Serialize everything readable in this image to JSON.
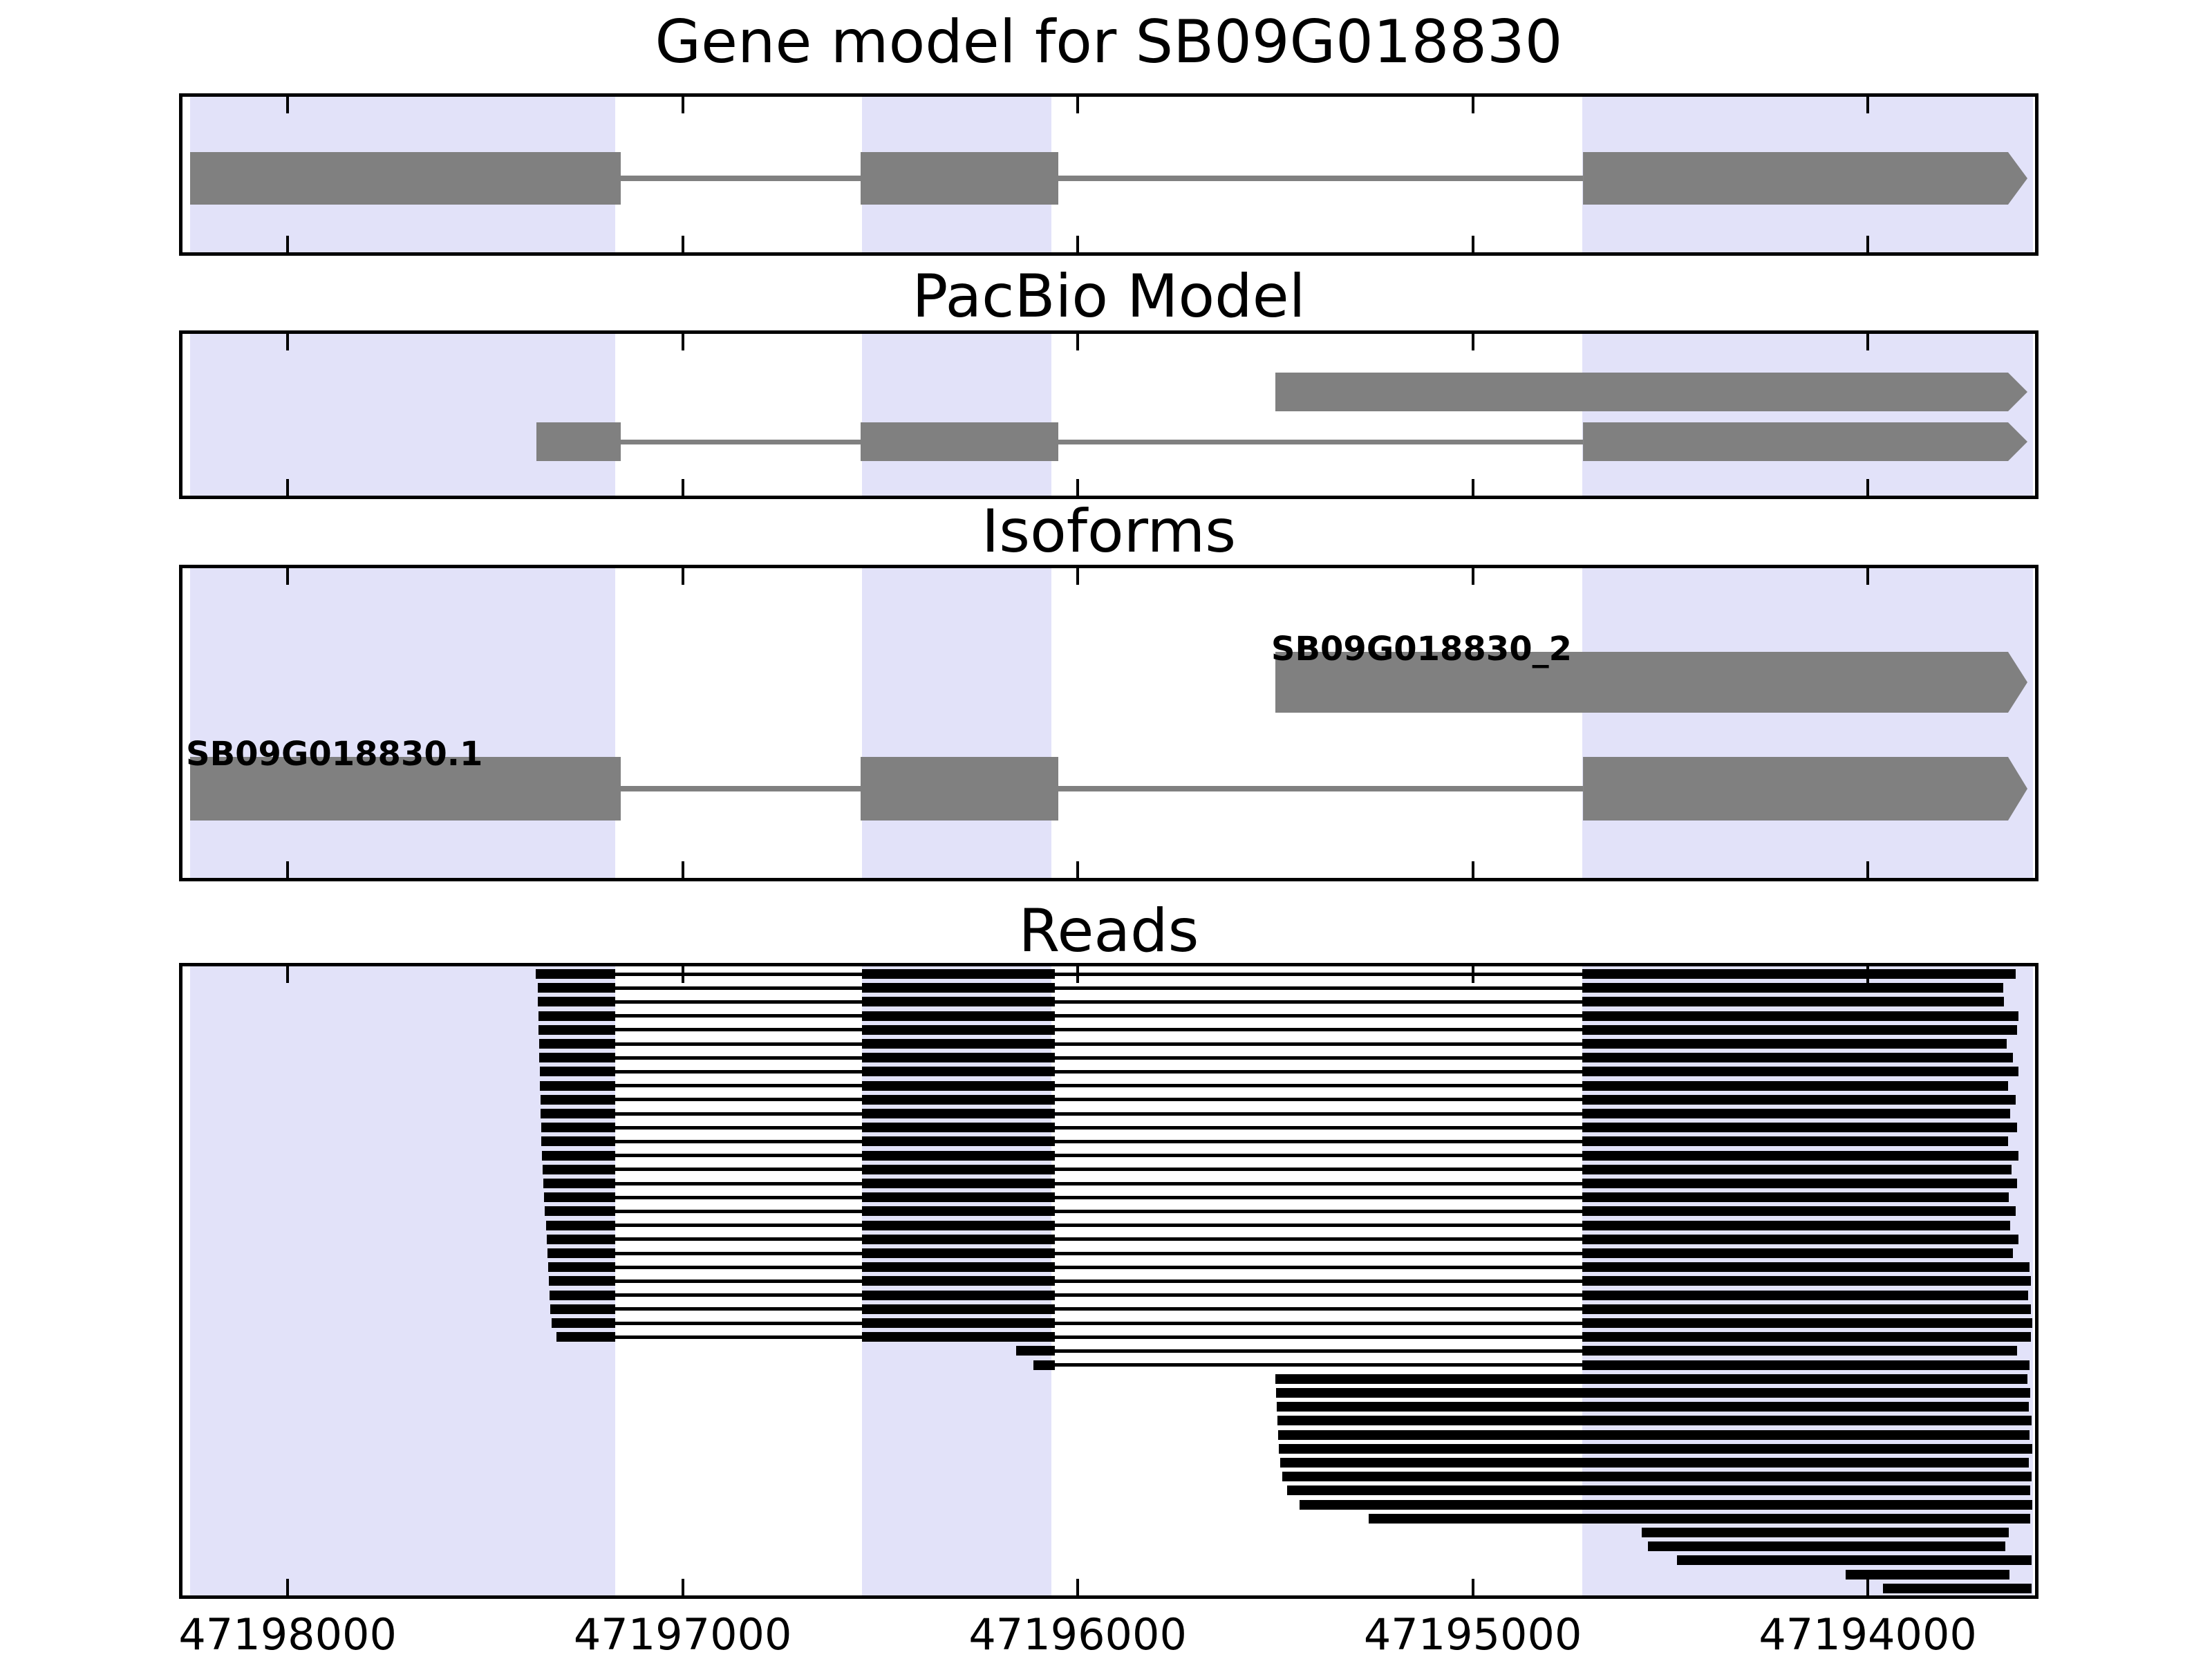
{
  "figure_title": "Gene model for SB09G018830",
  "colors": {
    "highlight_band": "#e2e2f9",
    "feature_gray": "#808080",
    "read_black": "#000000",
    "border_black": "#000000",
    "background": "#ffffff"
  },
  "panels": [
    {
      "id": "gene",
      "title": "Gene model for SB09G018830"
    },
    {
      "id": "pacbio",
      "title": "PacBio Model"
    },
    {
      "id": "isoforms",
      "title": "Isoforms"
    },
    {
      "id": "reads",
      "title": "Reads"
    }
  ],
  "chart_data": {
    "type": "genomic-track-plot",
    "locus": "SB09G018830",
    "strand": "minus",
    "x_axis": {
      "xlim": [
        47198275,
        47193568
      ],
      "inverted": true,
      "tick_values": [
        47198000,
        47197000,
        47196000,
        47195000,
        47194000
      ],
      "tick_labels": [
        "47198000",
        "47197000",
        "47196000",
        "47195000",
        "47194000"
      ]
    },
    "highlight_regions": [
      [
        47198247,
        47197171
      ],
      [
        47196546,
        47196067
      ],
      [
        47194723,
        47193582
      ]
    ],
    "gene_model": {
      "name": "SB09G018830",
      "arrow": true,
      "exons": [
        [
          47198247,
          47197157
        ],
        [
          47196549,
          47196049
        ],
        [
          47194721,
          47193596
        ]
      ]
    },
    "pacbio_model": [
      {
        "id": "pacbio-transcript-top",
        "arrow": true,
        "exons": [
          [
            47195500,
            47193596
          ]
        ]
      },
      {
        "id": "pacbio-transcript-bottom",
        "arrow": true,
        "exons": [
          [
            47197370,
            47197157
          ],
          [
            47196549,
            47196049
          ],
          [
            47194721,
            47193596
          ]
        ]
      }
    ],
    "isoforms": [
      {
        "name": "SB09G018830_2",
        "arrow": true,
        "exons": [
          [
            47195500,
            47193596
          ]
        ]
      },
      {
        "name": "SB09G018830.1",
        "arrow": true,
        "exons": [
          [
            47198247,
            47197157
          ],
          [
            47196549,
            47196049
          ],
          [
            47194721,
            47193596
          ]
        ]
      }
    ],
    "reads": [
      {
        "blocks": [
          [
            47197372,
            47197171
          ],
          [
            47196546,
            47196058
          ],
          [
            47194723,
            47193626
          ]
        ]
      },
      {
        "blocks": [
          [
            47197367,
            47197171
          ],
          [
            47196546,
            47196058
          ],
          [
            47194723,
            47193657
          ]
        ]
      },
      {
        "blocks": [
          [
            47197367,
            47197171
          ],
          [
            47196546,
            47196058
          ],
          [
            47194723,
            47193655
          ]
        ]
      },
      {
        "blocks": [
          [
            47197365,
            47197171
          ],
          [
            47196546,
            47196058
          ],
          [
            47194723,
            47193619
          ]
        ]
      },
      {
        "blocks": [
          [
            47197365,
            47197171
          ],
          [
            47196546,
            47196058
          ],
          [
            47194723,
            47193622
          ]
        ]
      },
      {
        "blocks": [
          [
            47197363,
            47197171
          ],
          [
            47196546,
            47196058
          ],
          [
            47194723,
            47193649
          ]
        ]
      },
      {
        "blocks": [
          [
            47197363,
            47197171
          ],
          [
            47196546,
            47196058
          ],
          [
            47194723,
            47193633
          ]
        ]
      },
      {
        "blocks": [
          [
            47197361,
            47197171
          ],
          [
            47196546,
            47196058
          ],
          [
            47194723,
            47193619
          ]
        ]
      },
      {
        "blocks": [
          [
            47197361,
            47197171
          ],
          [
            47196546,
            47196058
          ],
          [
            47194723,
            47193645
          ]
        ]
      },
      {
        "blocks": [
          [
            47197360,
            47197171
          ],
          [
            47196546,
            47196058
          ],
          [
            47194723,
            47193626
          ]
        ]
      },
      {
        "blocks": [
          [
            47197360,
            47197171
          ],
          [
            47196546,
            47196058
          ],
          [
            47194723,
            47193640
          ]
        ]
      },
      {
        "blocks": [
          [
            47197358,
            47197171
          ],
          [
            47196546,
            47196058
          ],
          [
            47194723,
            47193622
          ]
        ]
      },
      {
        "blocks": [
          [
            47197358,
            47197171
          ],
          [
            47196546,
            47196058
          ],
          [
            47194723,
            47193645
          ]
        ]
      },
      {
        "blocks": [
          [
            47197356,
            47197171
          ],
          [
            47196546,
            47196058
          ],
          [
            47194723,
            47193619
          ]
        ]
      },
      {
        "blocks": [
          [
            47197354,
            47197171
          ],
          [
            47196546,
            47196058
          ],
          [
            47194723,
            47193636
          ]
        ]
      },
      {
        "blocks": [
          [
            47197353,
            47197171
          ],
          [
            47196546,
            47196058
          ],
          [
            47194723,
            47193622
          ]
        ]
      },
      {
        "blocks": [
          [
            47197351,
            47197171
          ],
          [
            47196546,
            47196058
          ],
          [
            47194723,
            47193643
          ]
        ]
      },
      {
        "blocks": [
          [
            47197349,
            47197171
          ],
          [
            47196546,
            47196058
          ],
          [
            47194723,
            47193626
          ]
        ]
      },
      {
        "blocks": [
          [
            47197346,
            47197171
          ],
          [
            47196546,
            47196058
          ],
          [
            47194723,
            47193640
          ]
        ]
      },
      {
        "blocks": [
          [
            47197344,
            47197171
          ],
          [
            47196546,
            47196058
          ],
          [
            47194723,
            47193619
          ]
        ]
      },
      {
        "blocks": [
          [
            47197342,
            47197171
          ],
          [
            47196546,
            47196058
          ],
          [
            47194723,
            47193633
          ]
        ]
      },
      {
        "blocks": [
          [
            47197340,
            47197171
          ],
          [
            47196546,
            47196058
          ],
          [
            47194723,
            47193591
          ]
        ]
      },
      {
        "blocks": [
          [
            47197339,
            47197171
          ],
          [
            47196546,
            47196058
          ],
          [
            47194723,
            47193587
          ]
        ]
      },
      {
        "blocks": [
          [
            47197337,
            47197171
          ],
          [
            47196546,
            47196058
          ],
          [
            47194723,
            47193594
          ]
        ]
      },
      {
        "blocks": [
          [
            47197335,
            47197171
          ],
          [
            47196546,
            47196058
          ],
          [
            47194723,
            47193587
          ]
        ]
      },
      {
        "blocks": [
          [
            47197332,
            47197171
          ],
          [
            47196546,
            47196058
          ],
          [
            47194723,
            47193584
          ]
        ]
      },
      {
        "blocks": [
          [
            47197319,
            47197171
          ],
          [
            47196546,
            47196058
          ],
          [
            47194723,
            47193587
          ]
        ]
      },
      {
        "blocks": [
          [
            47196156,
            47196058
          ],
          [
            47194723,
            47193622
          ]
        ]
      },
      {
        "blocks": [
          [
            47196112,
            47196058
          ],
          [
            47194723,
            47193591
          ]
        ]
      },
      {
        "blocks": [
          [
            47195500,
            47193596
          ]
        ]
      },
      {
        "blocks": [
          [
            47195498,
            47193589
          ]
        ]
      },
      {
        "blocks": [
          [
            47195496,
            47193593
          ]
        ]
      },
      {
        "blocks": [
          [
            47195494,
            47193586
          ]
        ]
      },
      {
        "blocks": [
          [
            47195492,
            47193591
          ]
        ]
      },
      {
        "blocks": [
          [
            47195491,
            47193584
          ]
        ]
      },
      {
        "blocks": [
          [
            47195487,
            47193593
          ]
        ]
      },
      {
        "blocks": [
          [
            47195482,
            47193586
          ]
        ]
      },
      {
        "blocks": [
          [
            47195470,
            47193589
          ]
        ]
      },
      {
        "blocks": [
          [
            47195438,
            47193584
          ]
        ]
      },
      {
        "blocks": [
          [
            47195263,
            47193589
          ]
        ]
      },
      {
        "blocks": [
          [
            47194572,
            47193643
          ]
        ]
      },
      {
        "blocks": [
          [
            47194556,
            47193652
          ]
        ]
      },
      {
        "blocks": [
          [
            47194483,
            47193585
          ]
        ]
      },
      {
        "blocks": [
          [
            47194056,
            47193641
          ]
        ]
      },
      {
        "blocks": [
          [
            47193962,
            47193585
          ]
        ]
      }
    ]
  }
}
